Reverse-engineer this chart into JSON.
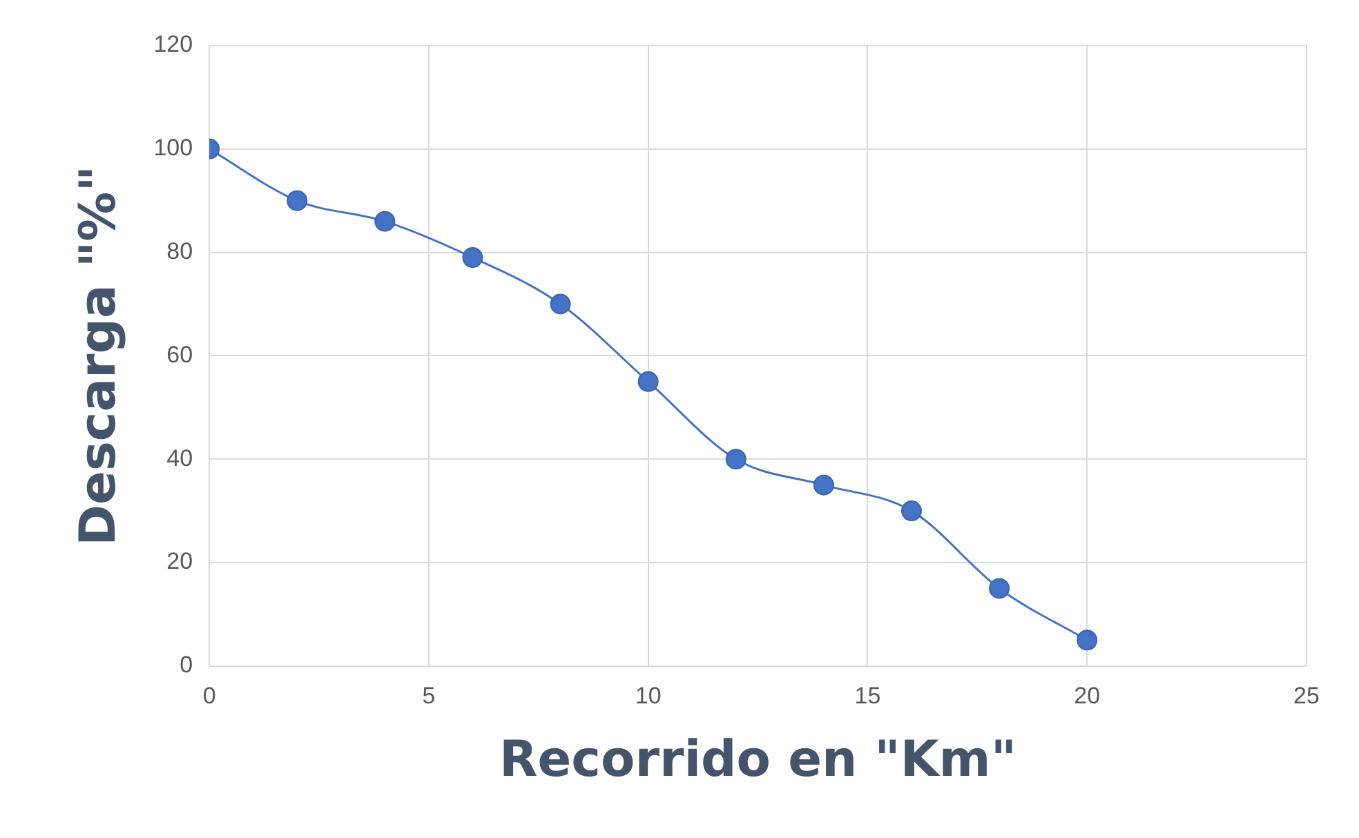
{
  "chart_data": {
    "type": "scatter",
    "xlabel": "Recorrido en \"Km\"",
    "ylabel": "Descarga \"%\"",
    "x": [
      0,
      2,
      4,
      6,
      8,
      10,
      12,
      14,
      16,
      18,
      20
    ],
    "series": [
      {
        "type": "line",
        "color": "#4472c4",
        "values": [
          100,
          90,
          86,
          79,
          70,
          55,
          40,
          35,
          30,
          15,
          5
        ]
      }
    ],
    "xlim": [
      0,
      25
    ],
    "xticks": [
      0,
      5,
      10,
      15,
      20,
      25
    ],
    "ylim": [
      0,
      120
    ],
    "yticks": [
      0,
      20,
      40,
      60,
      80,
      100,
      120
    ],
    "grid": true,
    "legend": false,
    "marker": "circle",
    "line_style": "solid"
  }
}
